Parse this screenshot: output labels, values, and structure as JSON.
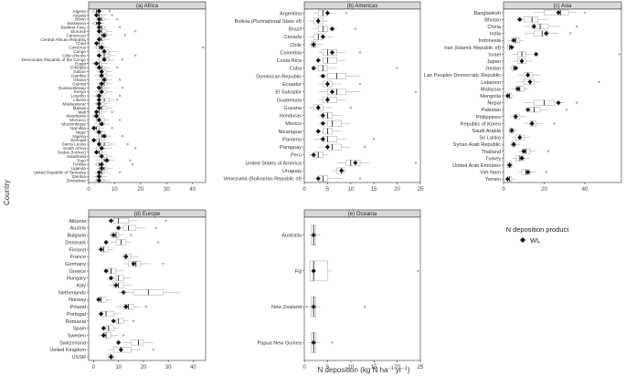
{
  "figure": {
    "ylabel": "Country",
    "xlabel_main": "N deposition (kg N ha",
    "xlabel_sup1": "−1",
    "xlabel_mid": " yr",
    "xlabel_sup2": "−1",
    "xlabel_end": ")",
    "legend_title": "N deposition product",
    "legend_item": "WL",
    "colors": {
      "box": "#b0b0b0",
      "outlier": "#aaaaaa",
      "median": "#111111",
      "strip": "#d9d9d9",
      "diamond": "#111111"
    }
  },
  "chart_data": [
    {
      "type": "boxplot",
      "title": "(a) Africa",
      "xlim": [
        0,
        45
      ],
      "xticks": [
        0,
        10,
        20,
        30,
        40
      ],
      "categories": [
        "Algeria",
        "Angola",
        "Benin",
        "Botswana",
        "Burkina Faso",
        "Burundi",
        "Cameroon",
        "Central African Republic",
        "Chad",
        "Comoros",
        "Congo",
        "Côte d'Ivoire",
        "Democratic Republic of the Congo",
        "Egypt",
        "Ethiopia",
        "Gabon",
        "Gambia",
        "Ghana",
        "Guinea",
        "Guinea-Bissau",
        "Kenya",
        "Lesotho",
        "Liberia",
        "Madagascar",
        "Malawi",
        "Mali",
        "Mauritania",
        "Morocco",
        "Mozambique",
        "Namibia",
        "Niger",
        "Nigeria",
        "Senegal",
        "Sierra Leone",
        "South Africa",
        "Sudan (former)",
        "Swaziland",
        "Togo",
        "Tunisia",
        "Uganda",
        "United Republic of Tanzania",
        "Zambia",
        "Zimbabwe"
      ],
      "boxes": [
        [
          1,
          2,
          3,
          4,
          6
        ],
        [
          2,
          3,
          4,
          5,
          7
        ],
        [
          2,
          4,
          5,
          6,
          8
        ],
        [
          1,
          2,
          3,
          4,
          6
        ],
        [
          3,
          4,
          5,
          6,
          7
        ],
        [
          3,
          4,
          5,
          7,
          9
        ],
        [
          3,
          4,
          5,
          7,
          9
        ],
        [
          3,
          4,
          5,
          6,
          8
        ],
        [
          2,
          3,
          4,
          5,
          6
        ],
        [
          2,
          3,
          4,
          6,
          8
        ],
        [
          3,
          4,
          6,
          8,
          11
        ],
        [
          3,
          5,
          6,
          8,
          10
        ],
        [
          3,
          4,
          6,
          8,
          10
        ],
        [
          1,
          2,
          4,
          5,
          7
        ],
        [
          2,
          4,
          5,
          6,
          8
        ],
        [
          3,
          4,
          5,
          7,
          9
        ],
        [
          2,
          4,
          5,
          7,
          9
        ],
        [
          3,
          5,
          6,
          7,
          9
        ],
        [
          3,
          4,
          6,
          7,
          9
        ],
        [
          3,
          4,
          5,
          6,
          8
        ],
        [
          2,
          4,
          5,
          7,
          9
        ],
        [
          1,
          3,
          4,
          5,
          7
        ],
        [
          3,
          4,
          6,
          8,
          10
        ],
        [
          2,
          3,
          4,
          6,
          8
        ],
        [
          3,
          4,
          5,
          7,
          9
        ],
        [
          2,
          3,
          4,
          5,
          7
        ],
        [
          1,
          2,
          3,
          4,
          6
        ],
        [
          2,
          3,
          4,
          6,
          8
        ],
        [
          2,
          4,
          5,
          6,
          8
        ],
        [
          1,
          2,
          3,
          4,
          6
        ],
        [
          2,
          3,
          4,
          5,
          7
        ],
        [
          3,
          4,
          5,
          7,
          9
        ],
        [
          2,
          3,
          4,
          5,
          7
        ],
        [
          3,
          4,
          6,
          8,
          10
        ],
        [
          2,
          3,
          5,
          6,
          9
        ],
        [
          2,
          3,
          4,
          5,
          7
        ],
        [
          2,
          4,
          5,
          7,
          9
        ],
        [
          3,
          5,
          6,
          8,
          10
        ],
        [
          2,
          3,
          4,
          5,
          7
        ],
        [
          3,
          4,
          6,
          7,
          9
        ],
        [
          2,
          4,
          5,
          6,
          8
        ],
        [
          2,
          3,
          4,
          5,
          7
        ],
        [
          2,
          3,
          4,
          6,
          8
        ]
      ],
      "wl": [
        4,
        3,
        4,
        4,
        4,
        4,
        6,
        4,
        3,
        5,
        6,
        4,
        6,
        3,
        4,
        5,
        5,
        6,
        5,
        4,
        5,
        4,
        4,
        4,
        4,
        3,
        3,
        4,
        5,
        2,
        4,
        6,
        2,
        4,
        5,
        3,
        5,
        7,
        5,
        5,
        4,
        4,
        4
      ],
      "outliers": [
        [
          0,
          8
        ],
        [
          1,
          9
        ],
        [
          2,
          11
        ],
        [
          4,
          12
        ],
        [
          5,
          18
        ],
        [
          6,
          14
        ],
        [
          9,
          44
        ],
        [
          11,
          18
        ],
        [
          12,
          13
        ],
        [
          14,
          11
        ],
        [
          17,
          12
        ],
        [
          19,
          13
        ],
        [
          21,
          12
        ],
        [
          22,
          11
        ],
        [
          25,
          9
        ],
        [
          27,
          12
        ],
        [
          29,
          9
        ],
        [
          31,
          13
        ],
        [
          33,
          15
        ],
        [
          34,
          18
        ],
        [
          37,
          16
        ],
        [
          38,
          17
        ],
        [
          40,
          12
        ]
      ]
    },
    {
      "type": "boxplot",
      "title": "(b) Americas",
      "xlim": [
        0,
        25
      ],
      "xticks": [
        0,
        5,
        10,
        15,
        20,
        25
      ],
      "categories": [
        "Argentina",
        "Bolivia (Plurinational State of)",
        "Brazil",
        "Canada",
        "Chile",
        "Colombia",
        "Costa Rica",
        "Cuba",
        "Dominican Republic",
        "Ecuador",
        "El Salvador",
        "Guatemala",
        "Guyana",
        "Honduras",
        "Mexico",
        "Nicaragua",
        "Panama",
        "Paraguay",
        "Peru",
        "United States of America",
        "Uruguay",
        "Venezuela (Bolivarian Republic of)"
      ],
      "boxes": [
        [
          2,
          3,
          4,
          5,
          7
        ],
        [
          1,
          2,
          3,
          4,
          5
        ],
        [
          2,
          3,
          4,
          5,
          7
        ],
        [
          1,
          2,
          3,
          4,
          6
        ],
        [
          1,
          1.5,
          2,
          2.5,
          4
        ],
        [
          3,
          4,
          5,
          7,
          9
        ],
        [
          3,
          4,
          5,
          7,
          9
        ],
        [
          2,
          3,
          4,
          5,
          7
        ],
        [
          3,
          5,
          7,
          9,
          12
        ],
        [
          3,
          4,
          5,
          6,
          8
        ],
        [
          3,
          5,
          7,
          9,
          12
        ],
        [
          3,
          4,
          5,
          7,
          9
        ],
        [
          1,
          2,
          3,
          4,
          6
        ],
        [
          3,
          4,
          5,
          6,
          8
        ],
        [
          3,
          5,
          6,
          8,
          10
        ],
        [
          3,
          4,
          5,
          6,
          8
        ],
        [
          2,
          4,
          5,
          7,
          9
        ],
        [
          3,
          5,
          6,
          8,
          10
        ],
        [
          1,
          2,
          3,
          4,
          5
        ],
        [
          7,
          9,
          10,
          12,
          14
        ],
        [
          6,
          7,
          8,
          8.5,
          9
        ],
        [
          2,
          3,
          4,
          5,
          8
        ]
      ],
      "wl": [
        5,
        3,
        6,
        4,
        2,
        6,
        3,
        2,
        4,
        5,
        6,
        5,
        3,
        4,
        4,
        3,
        4,
        5,
        2,
        11,
        8,
        3
      ],
      "outliers": [
        [
          0,
          9
        ],
        [
          2,
          11
        ],
        [
          5,
          12
        ],
        [
          7,
          20
        ],
        [
          9,
          12
        ],
        [
          10,
          24
        ],
        [
          12,
          10
        ],
        [
          16,
          15
        ],
        [
          17,
          13
        ],
        [
          19,
          24
        ],
        [
          21,
          12
        ]
      ]
    },
    {
      "type": "boxplot",
      "title": "(c) Asia",
      "xlim": [
        0,
        58
      ],
      "xticks": [
        0,
        20,
        40
      ],
      "categories": [
        "Bangladesh",
        "Bhutan",
        "China",
        "India",
        "Indonesia",
        "Iran (Islamic Republic of)",
        "Israel",
        "Japan",
        "Jordan",
        "Lao Peoples Democratic Republic",
        "Lebanon",
        "Malaysia",
        "Mongolia",
        "Nepal",
        "Pakistan",
        "Philippines",
        "Republic of Korea",
        "Saudi Arabia",
        "Sri Lanka",
        "Syrian Arab Republic",
        "Thailand",
        "Turkey",
        "United Arab Emirates",
        "Viet Nam",
        "Yemen"
      ],
      "boxes": [
        [
          15,
          20,
          28,
          32,
          36
        ],
        [
          6,
          10,
          14,
          17,
          22
        ],
        [
          10,
          14,
          18,
          22,
          28
        ],
        [
          10,
          15,
          19,
          22,
          27
        ],
        [
          2,
          4,
          6,
          8,
          10
        ],
        [
          1,
          2,
          3,
          4,
          6
        ],
        [
          4,
          7,
          9,
          11,
          14
        ],
        [
          5,
          7,
          9,
          11,
          14
        ],
        [
          3,
          4,
          5,
          6,
          8
        ],
        [
          7,
          10,
          12,
          14,
          18
        ],
        [
          7,
          10,
          13,
          15,
          18
        ],
        [
          4,
          6,
          8,
          10,
          12
        ],
        [
          1,
          2,
          3,
          4,
          5
        ],
        [
          10,
          15,
          20,
          25,
          30
        ],
        [
          10,
          13,
          15,
          18,
          22
        ],
        [
          3,
          5,
          6,
          8,
          11
        ],
        [
          10,
          13,
          14,
          16,
          19
        ],
        [
          2,
          3,
          4,
          5,
          7
        ],
        [
          4,
          6,
          8,
          10,
          13
        ],
        [
          3,
          4,
          5,
          6,
          8
        ],
        [
          7,
          9,
          11,
          13,
          16
        ],
        [
          4,
          6,
          8,
          10,
          13
        ],
        [
          1,
          2,
          3,
          4,
          5
        ],
        [
          7,
          9,
          11,
          13,
          16
        ],
        [
          1,
          2,
          3,
          4,
          6
        ]
      ],
      "wl": [
        27,
        8,
        15,
        21,
        5,
        4,
        16,
        9,
        6,
        12,
        13,
        7,
        2,
        27,
        12,
        6,
        14,
        4,
        8,
        5,
        10,
        9,
        3,
        12,
        2
      ],
      "outliers": [
        [
          0,
          40
        ],
        [
          2,
          36
        ],
        [
          3,
          33
        ],
        [
          6,
          57
        ],
        [
          10,
          47
        ],
        [
          13,
          36
        ],
        [
          14,
          31
        ],
        [
          16,
          25
        ],
        [
          20,
          22
        ],
        [
          23,
          21
        ]
      ]
    },
    {
      "type": "boxplot",
      "title": "(d) Europe",
      "xlim": [
        -2,
        45
      ],
      "xticks": [
        0,
        10,
        20,
        30,
        40
      ],
      "categories": [
        "Albania",
        "Austria",
        "Bulgaria",
        "Denmark",
        "Finland",
        "France",
        "Germany",
        "Greece",
        "Hungary",
        "Italy",
        "Netherlands",
        "Norway",
        "Poland",
        "Portugal",
        "Romania",
        "Spain",
        "Sweden",
        "Switzerland",
        "United Kingdom",
        "USSR"
      ],
      "boxes": [
        [
          5,
          8,
          10,
          14,
          18
        ],
        [
          9,
          12,
          14,
          17,
          21
        ],
        [
          6,
          7,
          9,
          10,
          12
        ],
        [
          7,
          9,
          11,
          13,
          15
        ],
        [
          1,
          3,
          4,
          6,
          8
        ],
        [
          11,
          12,
          13,
          15,
          18
        ],
        [
          12,
          14,
          17,
          19,
          23
        ],
        [
          4,
          6,
          7,
          9,
          12
        ],
        [
          6,
          9,
          10,
          12,
          15
        ],
        [
          6,
          8,
          10,
          12,
          15
        ],
        [
          10,
          16,
          22,
          28,
          35
        ],
        [
          1,
          2,
          3,
          5,
          7
        ],
        [
          9,
          12,
          14,
          16,
          19
        ],
        [
          2,
          3,
          5,
          8,
          11
        ],
        [
          7,
          9,
          10,
          12,
          14
        ],
        [
          3,
          5,
          6,
          8,
          10
        ],
        [
          2,
          4,
          5,
          7,
          10
        ],
        [
          12,
          15,
          18,
          20,
          24
        ],
        [
          6,
          8,
          11,
          15,
          19
        ],
        [
          5,
          6,
          7,
          8,
          9
        ]
      ],
      "wl": [
        7,
        10,
        8,
        5,
        3,
        13,
        16,
        5,
        7,
        9,
        12,
        2,
        13,
        3,
        8,
        4,
        4,
        10,
        11,
        7
      ],
      "outliers": [
        [
          0,
          29
        ],
        [
          1,
          25
        ],
        [
          2,
          15
        ],
        [
          3,
          26
        ],
        [
          6,
          28
        ],
        [
          12,
          21
        ],
        [
          14,
          16
        ],
        [
          16,
          12
        ],
        [
          18,
          24
        ]
      ]
    },
    {
      "type": "boxplot",
      "title": "(e) Oceania",
      "xlim": [
        0,
        25
      ],
      "xticks": [
        0,
        5,
        10,
        15,
        20,
        25
      ],
      "categories": [
        "Australia",
        "Fiji",
        "New Zealand",
        "Papua New Guinea"
      ],
      "boxes": [
        [
          1,
          1.5,
          2,
          2.5,
          3.5
        ],
        [
          1,
          1.2,
          2,
          5,
          6
        ],
        [
          1,
          1.5,
          2,
          2.5,
          3.5
        ],
        [
          1,
          1.5,
          2,
          2.5,
          3.5
        ]
      ],
      "wl": [
        2,
        2,
        2,
        2
      ],
      "outliers": [
        [
          1,
          24.5
        ],
        [
          2,
          0.5
        ],
        [
          2,
          13
        ],
        [
          3,
          6
        ]
      ]
    }
  ]
}
